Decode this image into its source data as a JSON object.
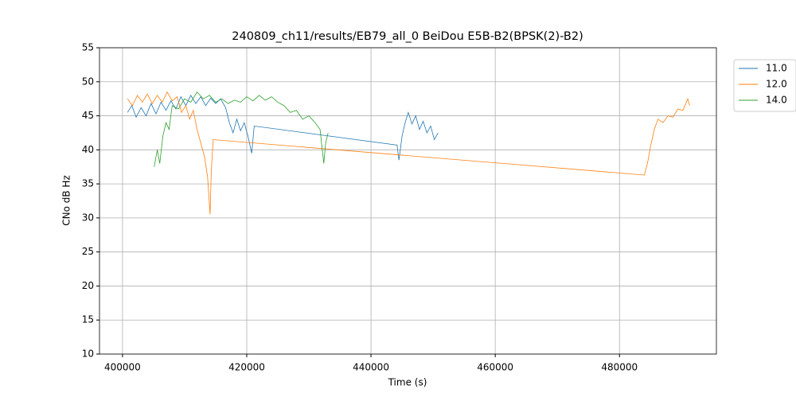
{
  "chart_data": {
    "type": "line",
    "title": "240809_ch11/results/EB79_all_0 BeiDou E5B-B2(BPSK(2)-B2)",
    "x_label": "Time (s)",
    "y_label": "CNo dB Hz",
    "xlim": [
      396300,
      495600
    ],
    "xticks": [
      400000,
      420000,
      440000,
      460000,
      480000
    ],
    "ylim": [
      10,
      55
    ],
    "yticks": [
      10,
      15,
      20,
      25,
      30,
      35,
      40,
      45,
      50,
      55
    ],
    "grid": true,
    "legend": "outside-upper-right",
    "series": [
      {
        "name": "11.0",
        "color": "#1f77b4",
        "x": [
          400800,
          401500,
          402200,
          403000,
          403800,
          404600,
          405400,
          406200,
          407000,
          407800,
          408600,
          409400,
          410200,
          411000,
          411800,
          412600,
          413400,
          414200,
          415000,
          415800,
          416600,
          417200,
          417800,
          418400,
          419000,
          419600,
          420200,
          420800,
          421200,
          444200,
          444500,
          445000,
          445500,
          446000,
          446600,
          447200,
          447800,
          448400,
          449000,
          449600,
          450200,
          450800
        ],
        "values": [
          45.5,
          46.5,
          44.8,
          46.2,
          45,
          46.8,
          45.3,
          47,
          45.8,
          47.2,
          46,
          47.8,
          46.5,
          48,
          46.8,
          47.8,
          46.5,
          47.6,
          46.8,
          47.5,
          46.2,
          44,
          42.5,
          44.5,
          42.8,
          44,
          42,
          39.5,
          43.5,
          40.7,
          38.5,
          42,
          44,
          45.5,
          43.8,
          45,
          43,
          44.2,
          42.5,
          43.5,
          41.5,
          42.5
        ]
      },
      {
        "name": "12.0",
        "color": "#ff7f0e",
        "x": [
          400800,
          401600,
          402400,
          403200,
          404000,
          404800,
          405600,
          406400,
          407200,
          408000,
          408800,
          409500,
          410200,
          410800,
          411400,
          412000,
          412600,
          413200,
          413700,
          414100,
          414300,
          414600,
          484000,
          484500,
          485000,
          485600,
          486200,
          487000,
          487800,
          488600,
          489400,
          490200,
          491000,
          491300
        ],
        "values": [
          47.5,
          46.5,
          48,
          47,
          48.2,
          46.8,
          48,
          47,
          48.5,
          47.2,
          47.8,
          45.5,
          46.5,
          44.5,
          45.8,
          43,
          41,
          39,
          36,
          30.5,
          37,
          41.5,
          36.3,
          38,
          40.5,
          43,
          44.5,
          44,
          45,
          44.8,
          46,
          45.8,
          47.5,
          46.5
        ]
      },
      {
        "name": "14.0",
        "color": "#2ca02c",
        "x": [
          405100,
          405600,
          406000,
          406500,
          407000,
          407500,
          408000,
          409000,
          410000,
          411000,
          412000,
          413000,
          414000,
          415000,
          416000,
          417000,
          418000,
          419000,
          420000,
          421000,
          422000,
          423000,
          424000,
          425000,
          426000,
          427000,
          428000,
          429000,
          430000,
          431000,
          431800,
          432400,
          432700,
          433100
        ],
        "values": [
          37.5,
          40,
          38,
          42,
          44,
          43,
          46.5,
          46,
          47.5,
          47,
          48.5,
          47.5,
          48,
          47,
          47.5,
          46.8,
          47.3,
          47,
          47.8,
          47.2,
          48,
          47.3,
          47.8,
          47,
          46.5,
          45.5,
          45.8,
          44.5,
          45,
          44,
          43,
          38,
          41,
          42.5
        ]
      }
    ]
  }
}
